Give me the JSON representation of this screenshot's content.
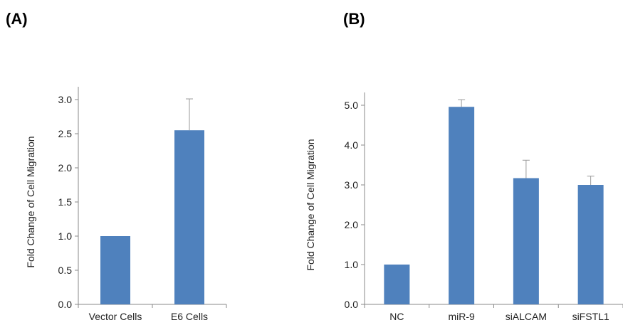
{
  "panels": {
    "a_label": "(A)",
    "b_label": "(B)"
  },
  "chart_data": [
    {
      "type": "bar",
      "panel": "(A)",
      "categories": [
        "Vector Cells",
        "E6 Cells"
      ],
      "values": [
        1.0,
        2.55
      ],
      "errors": [
        0,
        0.46
      ],
      "ylabel": "Fold Change of Cell Migration",
      "xlabel": "",
      "ylim": [
        0,
        3.0
      ],
      "yticks": [
        "0.0",
        "0.5",
        "1.0",
        "1.5",
        "2.0",
        "2.5",
        "3.0"
      ],
      "bar_color": "#4f81bd",
      "grid": false
    },
    {
      "type": "bar",
      "panel": "(B)",
      "categories": [
        "NC",
        "miR-9",
        "siALCAM",
        "siFSTL1"
      ],
      "values": [
        1.0,
        4.96,
        3.17,
        3.0
      ],
      "errors": [
        0,
        0.18,
        0.45,
        0.22
      ],
      "ylabel": "Fold Change of Cell Migration",
      "xlabel": "",
      "ylim": [
        0,
        5.0
      ],
      "yticks": [
        "0.0",
        "1.0",
        "2.0",
        "3.0",
        "4.0",
        "5.0"
      ],
      "bar_color": "#4f81bd",
      "grid": false
    }
  ]
}
